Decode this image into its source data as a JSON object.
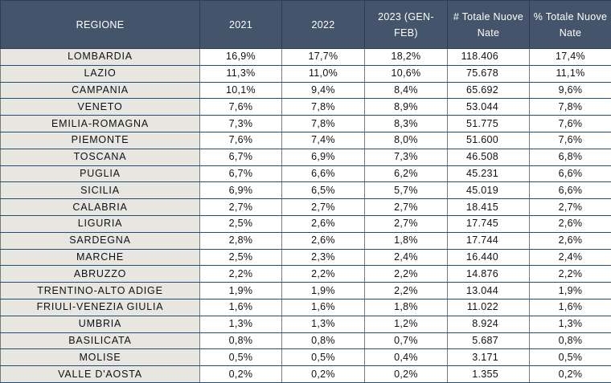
{
  "headers": [
    "REGIONE",
    "2021",
    "2022",
    "2023 (GEN-FEB)",
    "# Totale Nuove Nate",
    "% Totale Nuove Nate"
  ],
  "rows": [
    [
      "LOMBARDIA",
      "16,9%",
      "17,7%",
      "18,2%",
      "118.406",
      "17,4%"
    ],
    [
      "LAZIO",
      "11,3%",
      "11,0%",
      "10,6%",
      "75.678",
      "11,1%"
    ],
    [
      "CAMPANIA",
      "10,1%",
      "9,4%",
      "8,4%",
      "65.692",
      "9,6%"
    ],
    [
      "VENETO",
      "7,6%",
      "7,8%",
      "8,9%",
      "53.044",
      "7,8%"
    ],
    [
      "EMILIA-ROMAGNA",
      "7,3%",
      "7,8%",
      "8,3%",
      "51.775",
      "7,6%"
    ],
    [
      "PIEMONTE",
      "7,6%",
      "7,4%",
      "8,0%",
      "51.600",
      "7,6%"
    ],
    [
      "TOSCANA",
      "6,7%",
      "6,9%",
      "7,3%",
      "46.508",
      "6,8%"
    ],
    [
      "PUGLIA",
      "6,7%",
      "6,6%",
      "6,2%",
      "45.231",
      "6,6%"
    ],
    [
      "SICILIA",
      "6,9%",
      "6,5%",
      "5,7%",
      "45.019",
      "6,6%"
    ],
    [
      "CALABRIA",
      "2,7%",
      "2,7%",
      "2,7%",
      "18.415",
      "2,7%"
    ],
    [
      "LIGURIA",
      "2,5%",
      "2,6%",
      "2,7%",
      "17.745",
      "2,6%"
    ],
    [
      "SARDEGNA",
      "2,8%",
      "2,6%",
      "1,8%",
      "17.744",
      "2,6%"
    ],
    [
      "MARCHE",
      "2,5%",
      "2,3%",
      "2,4%",
      "16.440",
      "2,4%"
    ],
    [
      "ABRUZZO",
      "2,2%",
      "2,2%",
      "2,2%",
      "14.876",
      "2,2%"
    ],
    [
      "TRENTINO-ALTO ADIGE",
      "1,9%",
      "1,9%",
      "2,2%",
      "13.044",
      "1,9%"
    ],
    [
      "FRIULI-VENEZIA GIULIA",
      "1,6%",
      "1,6%",
      "1,8%",
      "11.022",
      "1,6%"
    ],
    [
      "UMBRIA",
      "1,3%",
      "1,3%",
      "1,2%",
      "8.924",
      "1,3%"
    ],
    [
      "BASILICATA",
      "0,8%",
      "0,8%",
      "0,7%",
      "5.687",
      "0,8%"
    ],
    [
      "MOLISE",
      "0,5%",
      "0,5%",
      "0,4%",
      "3.171",
      "0,5%"
    ],
    [
      "VALLE D'AOSTA",
      "0,2%",
      "0,2%",
      "0,2%",
      "1.355",
      "0,2%"
    ]
  ]
}
